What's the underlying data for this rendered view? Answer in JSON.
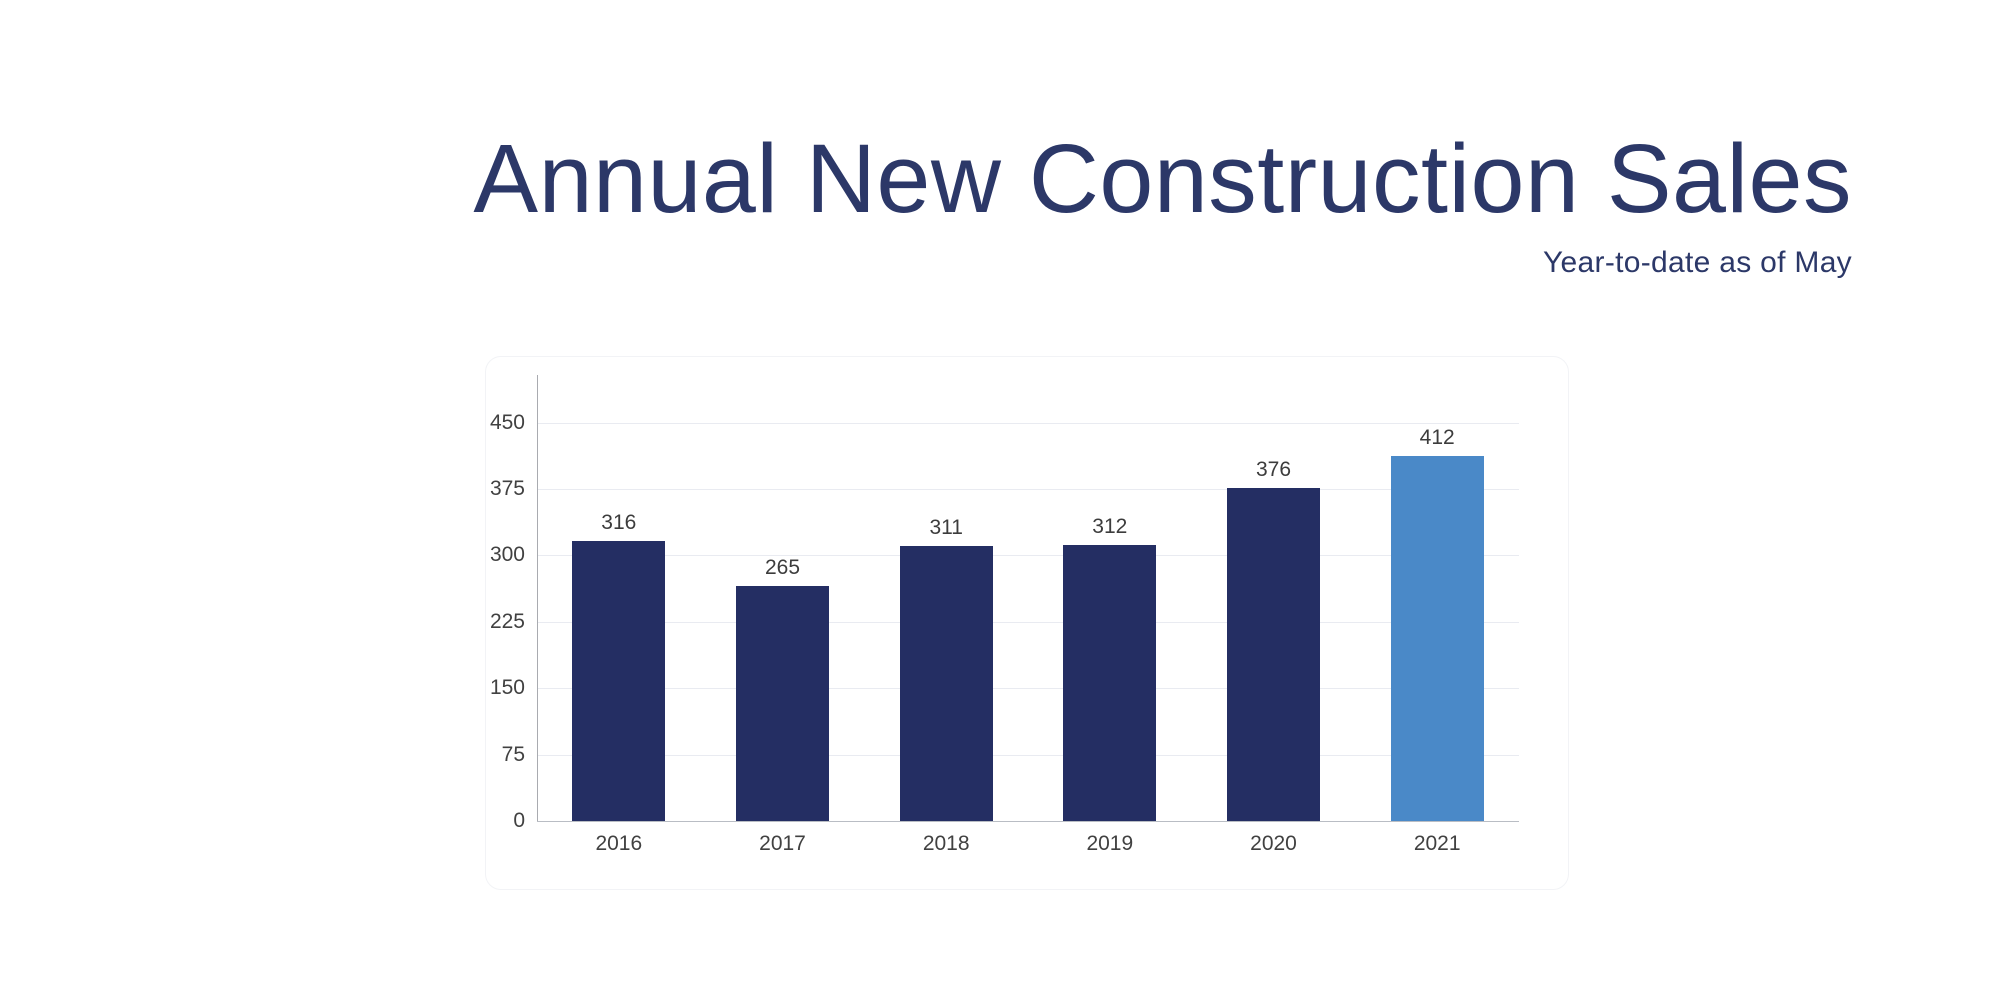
{
  "header": {
    "title": "Annual New Construction Sales",
    "subtitle": "Year-to-date as of May"
  },
  "theme": {
    "background": "#ffffff",
    "title_color": "#2c3868",
    "subtitle_color": "#2c3868",
    "bar_color": "#242e63",
    "highlight_color": "#4a89c8",
    "gridline_color": "#e9ebf1",
    "axis_line_color": "#a9abb0",
    "baseline_color": "#b9bdc4",
    "tick_label_color": "#414141",
    "value_label_color": "#3c3c3c"
  },
  "chart_data": {
    "type": "bar",
    "title": "Annual New Construction Sales",
    "subtitle": "Year-to-date as of May",
    "categories": [
      "2016",
      "2017",
      "2018",
      "2019",
      "2020",
      "2021"
    ],
    "values": [
      316,
      265,
      311,
      312,
      376,
      412
    ],
    "value_labels_shown": true,
    "highlight_index": 5,
    "highlight_note": "2021 bar rendered in light blue, all other bars dark navy",
    "xlabel": "",
    "ylabel": "",
    "ylim": [
      0,
      500
    ],
    "yticks": [
      0,
      75,
      150,
      225,
      300,
      375,
      450
    ],
    "grid": true,
    "legend": false
  }
}
